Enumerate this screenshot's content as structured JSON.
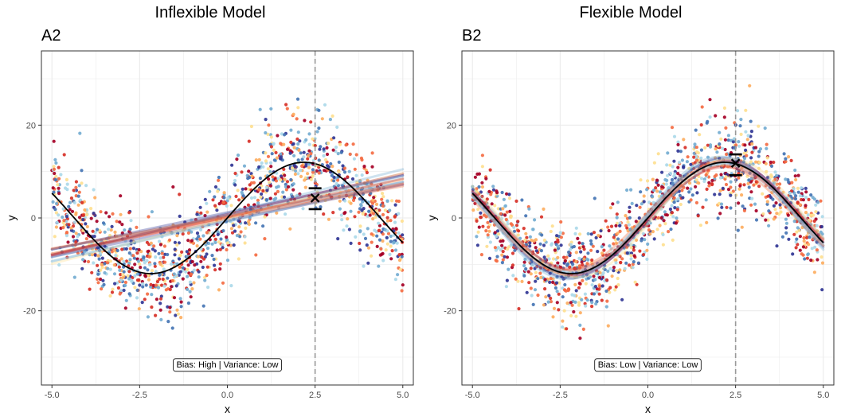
{
  "chart_data": [
    {
      "type": "scatter",
      "title": "Inflexible Model",
      "panel_tag": "A2",
      "xlabel": "x",
      "ylabel": "y",
      "xlim": [
        -5.3,
        5.3
      ],
      "ylim": [
        -36,
        36
      ],
      "xticks": [
        -5.0,
        -2.5,
        0.0,
        2.5,
        5.0
      ],
      "xtick_labels": [
        "-5.0",
        "-2.5",
        "0.0",
        "2.5",
        "5.0"
      ],
      "yticks": [
        -20,
        0,
        20
      ],
      "ytick_labels": [
        "-20",
        "0",
        "20"
      ],
      "grid": true,
      "true_function": "y = 12*sin(0.72*x)",
      "fit_type": "linear",
      "fit_lines": [
        {
          "intercept": 0.6,
          "slope": 1.7,
          "color": "#4575b4"
        },
        {
          "intercept": -0.2,
          "slope": 1.5,
          "color": "#d73027"
        },
        {
          "intercept": 0.3,
          "slope": 1.6,
          "color": "#fdae61"
        },
        {
          "intercept": 1.0,
          "slope": 1.9,
          "color": "#74add1"
        },
        {
          "intercept": -0.6,
          "slope": 1.55,
          "color": "#313695"
        },
        {
          "intercept": 0.1,
          "slope": 1.35,
          "color": "#f46d43"
        },
        {
          "intercept": 0.8,
          "slope": 1.75,
          "color": "#a50026"
        },
        {
          "intercept": -0.4,
          "slope": 1.8,
          "color": "#abd9e9"
        },
        {
          "intercept": 0.5,
          "slope": 1.45,
          "color": "#4575b4"
        },
        {
          "intercept": -0.1,
          "slope": 1.95,
          "color": "#fee090"
        },
        {
          "intercept": 0.2,
          "slope": 1.65,
          "color": "#d73027"
        },
        {
          "intercept": 1.2,
          "slope": 1.6,
          "color": "#313695"
        },
        {
          "intercept": -0.8,
          "slope": 1.7,
          "color": "#74add1"
        },
        {
          "intercept": 0.4,
          "slope": 1.4,
          "color": "#f46d43"
        }
      ],
      "reference_x": 2.5,
      "errorbar": {
        "x": 2.5,
        "mean": 4.3,
        "lower": 1.9,
        "upper": 6.4
      },
      "annotation": "Bias: High | Variance: Low"
    },
    {
      "type": "scatter",
      "title": "Flexible Model",
      "panel_tag": "B2",
      "xlabel": "x",
      "ylabel": "y",
      "xlim": [
        -5.3,
        5.3
      ],
      "ylim": [
        -36,
        36
      ],
      "xticks": [
        -5.0,
        -2.5,
        0.0,
        2.5,
        5.0
      ],
      "xtick_labels": [
        "-5.0",
        "-2.5",
        "0.0",
        "2.5",
        "5.0"
      ],
      "yticks": [
        -20,
        0,
        20
      ],
      "ytick_labels": [
        "-20",
        "0",
        "20"
      ],
      "grid": true,
      "true_function": "y = 12*sin(0.72*x)",
      "fit_type": "flexible",
      "fit_lines": [
        {
          "amp": 12.6,
          "shift": 0.1,
          "color": "#4575b4"
        },
        {
          "amp": 11.4,
          "shift": -0.08,
          "color": "#d73027"
        },
        {
          "amp": 12.2,
          "shift": 0.06,
          "color": "#fdae61"
        },
        {
          "amp": 11.8,
          "shift": -0.12,
          "color": "#74add1"
        },
        {
          "amp": 13.0,
          "shift": 0.03,
          "color": "#313695"
        },
        {
          "amp": 11.2,
          "shift": 0.14,
          "color": "#f46d43"
        },
        {
          "amp": 12.4,
          "shift": -0.04,
          "color": "#a50026"
        },
        {
          "amp": 11.6,
          "shift": 0.09,
          "color": "#abd9e9"
        },
        {
          "amp": 12.8,
          "shift": -0.15,
          "color": "#fee090"
        },
        {
          "amp": 12.0,
          "shift": 0.0,
          "color": "#4575b4"
        },
        {
          "amp": 11.0,
          "shift": -0.02,
          "color": "#d73027"
        },
        {
          "amp": 13.2,
          "shift": 0.12,
          "color": "#74add1"
        }
      ],
      "reference_x": 2.5,
      "errorbar": {
        "x": 2.5,
        "mean": 11.8,
        "lower": 9.2,
        "upper": 13.7
      },
      "annotation": "Bias: Low | Variance: Low"
    }
  ],
  "point_palette": [
    "#a50026",
    "#d73027",
    "#f46d43",
    "#fdae61",
    "#fee090",
    "#abd9e9",
    "#74add1",
    "#4575b4",
    "#313695"
  ],
  "colors": {
    "panel_bg": "#ffffff",
    "grid": "#ebebeb",
    "border": "#333333",
    "true_curve": "#000000",
    "reference_line": "#999999"
  }
}
